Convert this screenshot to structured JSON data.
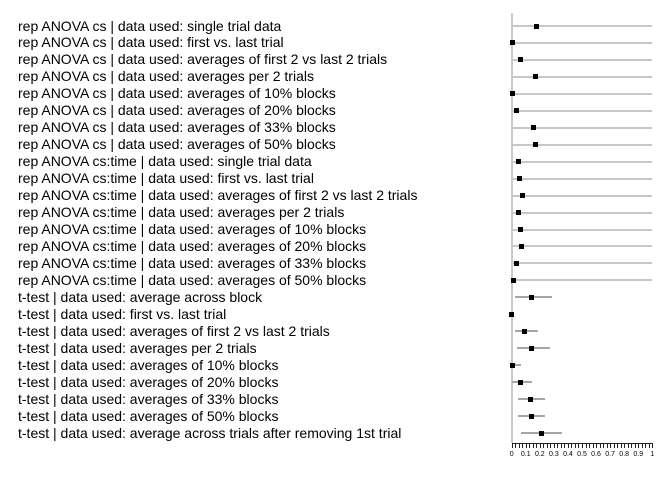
{
  "figure": {
    "background": "#ffffff",
    "marker_color": "#000000",
    "anova_line_color": "#c7c7c7",
    "ttest_bar_color": "#a6a6a6",
    "axis_line_color": "#c9c9c9",
    "tick_color": "#222222"
  },
  "chart_data": {
    "type": "scatter",
    "subtype": "forest-dot-plot-with-error-bars",
    "title": "",
    "xlabel": "",
    "ylabel": "",
    "xlim": [
      0,
      1
    ],
    "x_major_ticks": [
      0,
      0.1,
      0.2,
      0.3,
      0.4,
      0.5,
      0.6,
      0.7,
      0.8,
      0.9,
      1
    ],
    "x_tick_labels": [
      "0",
      "0.1",
      "0.2",
      "0.3",
      "0.4",
      "0.5",
      "0.6",
      "0.7",
      "0.8",
      "0.9",
      "1"
    ],
    "x_minor_tick_step": 0.025,
    "grid": false,
    "legend": "none",
    "rows": [
      {
        "label": "rep ANOVA cs | data used: single trial data",
        "value": 0.173,
        "ci": [
          0,
          1
        ],
        "style": "light"
      },
      {
        "label": "rep ANOVA cs | data used: first vs. last trial",
        "value": 0.003,
        "ci": [
          0,
          1
        ],
        "style": "light"
      },
      {
        "label": "rep ANOVA cs | data used: averages of first 2 vs last 2 trials",
        "value": 0.061,
        "ci": [
          0,
          1
        ],
        "style": "light"
      },
      {
        "label": "rep ANOVA cs | data used: averages per 2 trials",
        "value": 0.172,
        "ci": [
          0,
          1
        ],
        "style": "light"
      },
      {
        "label": "rep ANOVA cs | data used: averages of 10% blocks",
        "value": 0.006,
        "ci": [
          0,
          1
        ],
        "style": "light"
      },
      {
        "label": "rep ANOVA cs | data used: averages of 20% blocks",
        "value": 0.036,
        "ci": [
          0,
          1
        ],
        "style": "light"
      },
      {
        "label": "rep ANOVA cs | data used: averages of 33% blocks",
        "value": 0.158,
        "ci": [
          0,
          1
        ],
        "style": "light"
      },
      {
        "label": "rep ANOVA cs | data used: averages of 50% blocks",
        "value": 0.172,
        "ci": [
          0,
          1
        ],
        "style": "light"
      },
      {
        "label": "rep ANOVA cs:time | data used: single trial data",
        "value": 0.051,
        "ci": [
          0,
          1
        ],
        "style": "light"
      },
      {
        "label": "rep ANOVA cs:time | data used: first vs. last trial",
        "value": 0.052,
        "ci": [
          0,
          1
        ],
        "style": "light"
      },
      {
        "label": "rep ANOVA cs:time | data used: averages of first 2 vs last 2 trials",
        "value": 0.079,
        "ci": [
          0,
          1
        ],
        "style": "light"
      },
      {
        "label": "rep ANOVA cs:time | data used: averages per 2 trials",
        "value": 0.046,
        "ci": [
          0,
          1
        ],
        "style": "light"
      },
      {
        "label": "rep ANOVA cs:time | data used: averages of 10% blocks",
        "value": 0.065,
        "ci": [
          0,
          1
        ],
        "style": "light"
      },
      {
        "label": "rep ANOVA cs:time | data used: averages of 20% blocks",
        "value": 0.068,
        "ci": [
          0,
          1
        ],
        "style": "light"
      },
      {
        "label": "rep ANOVA cs:time | data used: averages of 33% blocks",
        "value": 0.037,
        "ci": [
          0,
          1
        ],
        "style": "light"
      },
      {
        "label": "rep ANOVA cs:time | data used: averages of 50% blocks",
        "value": 0.016,
        "ci": [
          0,
          1
        ],
        "style": "light"
      },
      {
        "label": "t-test | data used: average across block",
        "value": 0.143,
        "ci": [
          0.02,
          0.285
        ],
        "style": "dark"
      },
      {
        "label": "t-test | data used: first vs. last trial",
        "value": 0.002,
        "ci": [
          0,
          0.012
        ],
        "style": "dark"
      },
      {
        "label": "t-test | data used: averages of first 2 vs last 2 trials",
        "value": 0.089,
        "ci": [
          0.022,
          0.19
        ],
        "style": "dark"
      },
      {
        "label": "t-test | data used: averages per 2 trials",
        "value": 0.143,
        "ci": [
          0.04,
          0.275
        ],
        "style": "dark"
      },
      {
        "label": "t-test | data used: averages of 10% blocks",
        "value": 0.006,
        "ci": [
          0,
          0.068
        ],
        "style": "dark"
      },
      {
        "label": "t-test | data used: averages of 20% blocks",
        "value": 0.06,
        "ci": [
          0.005,
          0.142
        ],
        "style": "dark"
      },
      {
        "label": "t-test | data used: averages of 33% blocks",
        "value": 0.135,
        "ci": [
          0.042,
          0.24
        ],
        "style": "dark"
      },
      {
        "label": "t-test | data used: averages of 50% blocks",
        "value": 0.141,
        "ci": [
          0.044,
          0.24
        ],
        "style": "dark"
      },
      {
        "label": "t-test | data used: average across trials after removing 1st trial",
        "value": 0.21,
        "ci": [
          0.065,
          0.355
        ],
        "style": "dark"
      }
    ]
  }
}
